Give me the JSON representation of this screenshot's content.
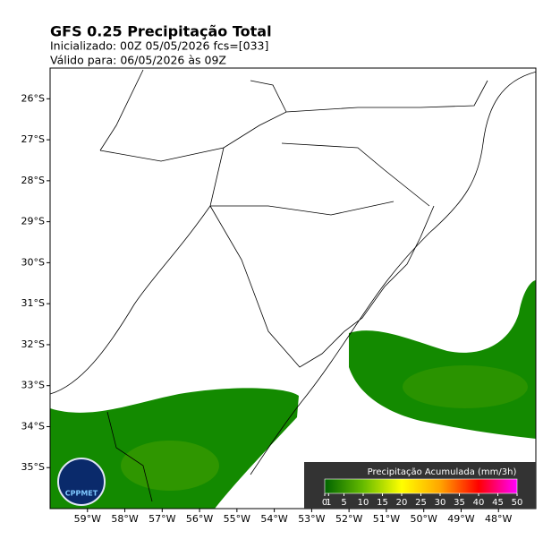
{
  "title": "GFS 0.25 Precipitação Total",
  "subtitle": [
    "Inicializado: 00Z  05/05/2026    fcs=[033]",
    "Válido para: 06/05/2026 às 09Z"
  ],
  "map": {
    "xlim": [
      -60,
      -47
    ],
    "ylim": [
      -36,
      -25.25
    ],
    "xticks": [
      {
        "value": -59,
        "label": "59°W"
      },
      {
        "value": -58,
        "label": "58°W"
      },
      {
        "value": -57,
        "label": "57°W"
      },
      {
        "value": -56,
        "label": "56°W"
      },
      {
        "value": -55,
        "label": "55°W"
      },
      {
        "value": -54,
        "label": "54°W"
      },
      {
        "value": -53,
        "label": "53°W"
      },
      {
        "value": -52,
        "label": "52°W"
      },
      {
        "value": -51,
        "label": "51°W"
      },
      {
        "value": -50,
        "label": "50°W"
      },
      {
        "value": -49,
        "label": "49°W"
      },
      {
        "value": -48,
        "label": "48°W"
      }
    ],
    "yticks": [
      {
        "value": -26,
        "label": "26°S"
      },
      {
        "value": -27,
        "label": "27°S"
      },
      {
        "value": -28,
        "label": "28°S"
      },
      {
        "value": -29,
        "label": "29°S"
      },
      {
        "value": -30,
        "label": "30°S"
      },
      {
        "value": -31,
        "label": "31°S"
      },
      {
        "value": -32,
        "label": "32°S"
      },
      {
        "value": -33,
        "label": "33°S"
      },
      {
        "value": -34,
        "label": "34°S"
      },
      {
        "value": -35,
        "label": "35°S"
      }
    ]
  },
  "colorbar": {
    "label": "Precipitação Acumulada (mm/3h)",
    "lim": [
      0,
      50
    ],
    "ticks": [
      0,
      1,
      5,
      10,
      15,
      20,
      25,
      30,
      35,
      40,
      45,
      50
    ],
    "colors": [
      "#006400",
      "#66bb00",
      "#ffff00",
      "#ffa500",
      "#ff0000",
      "#ff00ff"
    ]
  },
  "logo": "CPPMET"
}
